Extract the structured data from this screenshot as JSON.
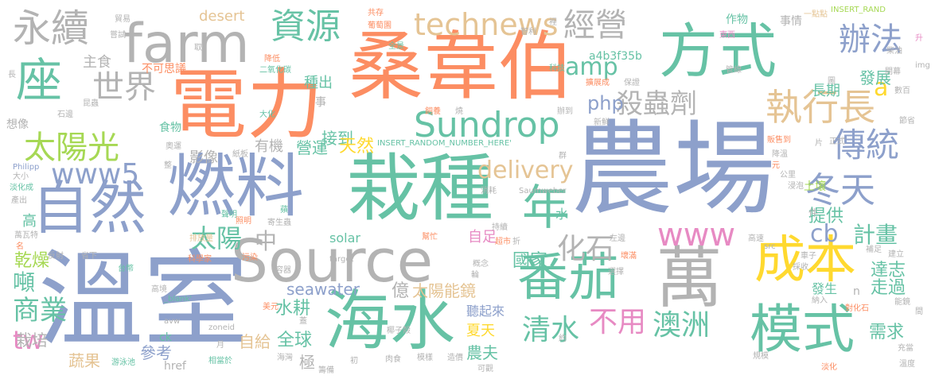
{
  "palette": {
    "green": "#66c2a5",
    "orange": "#fc8d62",
    "blue": "#8da0cb",
    "pink": "#e78ac3",
    "lime": "#a6d854",
    "yellow": "#ffd92f",
    "tan": "#e5c494",
    "gray": "#b3b3b3"
  },
  "words": {
    "nongchang": "農場",
    "wenshi": "溫室",
    "sangweibo": "桑韋伯",
    "dianli": "電力",
    "zaizhong": "栽種",
    "ranliao": "燃料",
    "source": "Source",
    "haishui": "海水",
    "fangshi": "方式",
    "farm": "farm",
    "ziran": "自然",
    "wan": "萬",
    "chengben": "成本",
    "moshi": "模式",
    "fanqie": "番茄",
    "nian": "年",
    "zuo": "座",
    "sundrop": "Sundrop",
    "zhixingzhang": "執行長",
    "taiyangguang": "太陽光",
    "chuantong": "傳統",
    "dongtian": "冬天",
    "yongxu": "永續",
    "ziyuan": "資源",
    "technews": "technews",
    "jingying": "經營",
    "banfa": "辦法",
    "shijie": "世界",
    "shachongji": "殺蟲劑",
    "www5": "www5",
    "www": "www",
    "huashi": "化石",
    "taiyang": "太陽",
    "zhong": "中",
    "delivery": "delivery",
    "aozhou": "澳洲",
    "qingshui": "清水",
    "buyong": "不用",
    "shangye": "商業",
    "tw": "tw",
    "amp": "amp",
    "php": "php",
    "cb": "cb",
    "a": "a",
    "jihua": "計畫",
    "dun": "噸",
    "ganzao": "乾燥",
    "seawater": "seawater",
    "guojia": "國家",
    "taiyangnengjing": "太陽能鏡",
    "shuigeng": "水耕",
    "zaipei": "栽培",
    "shucai": "蔬果",
    "quanqiu": "全球",
    "zigei": "自給",
    "nongfu": "農夫",
    "xiatian": "夏天",
    "tingqilai": "聽起來",
    "yi": "億",
    "ji": "極",
    "cankao": "參考",
    "solar": "solar",
    "zizu": "自足",
    "tigong": "提供",
    "gao": "高",
    "xuqiu": "需求",
    "zouguo": "走過",
    "dazhi": "達志",
    "fazhan": "發展",
    "changqi": "長期",
    "tuorang": "土壤",
    "jiedao": "接到",
    "tianran": "天然",
    "yingyun": "營運",
    "youji": "有機",
    "yingxiang": "影像",
    "shiwu": "食物",
    "xiangxiang": "想像",
    "zhushi": "主食",
    "zhongchu": "種出",
    "bukesiyi": "不可思議",
    "desert": "desert",
    "zuowu": "作物",
    "shiqing": "事情",
    "a4b3f35b": "a4b3f35b",
    "href": "href",
    "ck": "ck",
    "avw": "avw",
    "blank": "_blank'",
    "zoneid": "zoneid",
    "target": "target",
    "insert_random": "INSERT_RANDOM_NUMBER_HERE'",
    "insert_rand": "INSERT_RAND",
    "saumweber": "Saumweber",
    "philipp": "Philipp",
    "img": "img",
    "src": "src",
    "shui": "水",
    "jian": "件",
    "fasheng": "發生",
    "shi": "事",
    "n": "n",
    "s_kenichi": "肯尼",
    "s_dianliang": "一點點",
    "s_gongcun": "共存",
    "s_putaoyuan": "葡萄園",
    "s_quanjing": "全景",
    "s_zhili": "智利",
    "s_li": "裡",
    "s_dongxi": "東西",
    "s_chaiyou": "柴油",
    "s_sheng": "升",
    "s_chang": "長",
    "s_haiyang": "海洋",
    "s_maoyi": "貿易",
    "s_changshi": "嘗試",
    "s_qu": "取",
    "s_jiangdi": "降低",
    "s_eryanghuatan": "二氧化碳",
    "s_keji": "科技",
    "s_guanxian": "管線",
    "s_kaiduan": "開幕",
    "s_zhuangjia": "擴展成",
    "s_baozheng": "保證",
    "s_tu": "圖",
    "s_kunchong": "昆蟲",
    "s_shizao": "石邊",
    "s_chongwu": "寵物",
    "s_siyang": "飼養",
    "s_shao": "燒",
    "s_banju": "辦到",
    "s_shuxian": "數百",
    "s_jiedian": "節省",
    "s_yuanliao": "原料",
    "s_huanjing": "環境",
    "s_xinxian": "新鮮",
    "s_dahua": "大化",
    "s_zhengshi": "正式",
    "s_pian": "片",
    "s_fanshou": "販售到",
    "s_jiangwen": "降溫",
    "s_yuan": "元",
    "s_gongli": "公里",
    "s_jinzhi": "浸泡",
    "s_aoyun": "奧運",
    "s_zhengkai": "整",
    "s_zhiban": "紙板",
    "s_qunti": "群",
    "s_xiaohao": "消耗",
    "s_danhua": "淡化成",
    "s_daxiao": "大小",
    "s_chanchu": "產出",
    "s_wanwate": "萬瓦特",
    "s_ming": "名",
    "s_fanshe": "反射",
    "s_shengxia": "省下",
    "s_taidian": "台幣",
    "s_gaojing": "高境",
    "s_paifang": "排放量",
    "s_kexuejia": "科學家",
    "s_wuran": "污染",
    "s_rongqi": "容器",
    "s_meiyuan": "美元",
    "s_gaotao": "高速",
    "s_buzu": "補足",
    "s_jianli": "建立",
    "s_chezi": "車子",
    "s_caishou": "採收",
    "s_nashu": "納入",
    "s_duihuashi": "對化石",
    "s_nengjing": "能鏡",
    "s_jian2": "間",
    "s_chongdian": "充當",
    "s_wendu": "溫度",
    "s_rouqi": "肉食",
    "s_muyang": "模樣",
    "s_zaojia": "造價",
    "s_keguan": "可觀",
    "s_chouqi": "籌備",
    "s_youyongchi": "游泳池",
    "s_xiangdang": "相當於",
    "s_haiwan": "海灣",
    "s_yue": "月",
    "s_yeziqiao": "椰子殼",
    "s_jiaoguan": "管線2",
    "s_yue2": "約",
    "s_guimo": "規模",
    "s_xuanze": "選擇",
    "s_gainian": "概念",
    "s_chaoshi": "超市",
    "s_zhe": "折",
    "s_shumaxi": "數碼",
    "s_zuobian": "左邊",
    "s_huaiman": "壞滿",
    "s_chixu": "持續",
    "s_bangzhu": "幫忙",
    "s_qinsheng": "寄生蟲",
    "s_dian": "電",
    "s_ji2": "蘋",
    "s_shuangming": "聲明",
    "s_gao2": "蓋",
    "s_dian2": "輪",
    "s_yin": "輸入",
    "s_zao": "照明",
    "s_qiandao": "淡化",
    "s_jinlai": "進入",
    "s_shuiyuan": "資料",
    "s_yewan": "夜晚",
    "s_jingdu": "精確",
    "s_yiqi": "一起",
    "s_li2": "距離",
    "s_xiaohua": "消化",
    "s_wu": "污",
    "s_shouji": "收集",
    "s_chanye": "產業",
    "s_gou": "夠",
    "s_dun2": "噸2",
    "s_chu": "初",
    "s_yu": "魚",
    "s_ye": "葉",
    "s_nongye": "農業"
  }
}
